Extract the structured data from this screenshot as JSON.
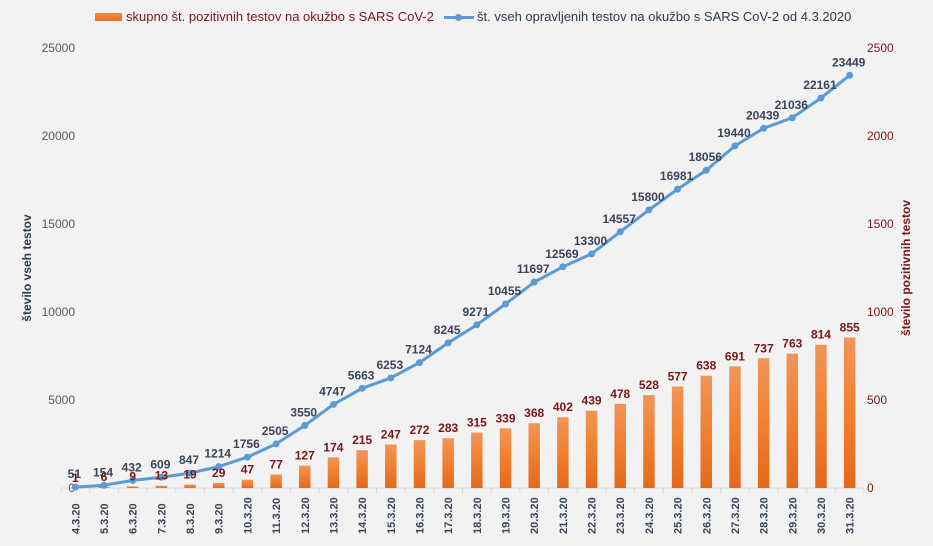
{
  "chart_data": {
    "type": "bar+line",
    "title": "",
    "categories": [
      "4.3.20",
      "5.3.20",
      "6.3.20",
      "7.3.20",
      "8.3.20",
      "9.3.20",
      "10.3.20",
      "11.3.20",
      "12.3.20",
      "13.3.20",
      "14.3.20",
      "15.3.20",
      "16.3.20",
      "17.3.20",
      "18.3.20",
      "19.3.20",
      "20.3.20",
      "21.3.20",
      "22.3.20",
      "23.3.20",
      "24.3.20",
      "25.3.20",
      "26.3.20",
      "27.3.20",
      "28.3.20",
      "29.3.20",
      "30.3.20",
      "31.3.20"
    ],
    "series": [
      {
        "name": "skupno št. pozitivnih testov na okužbo s SARS CoV-2",
        "type": "bar",
        "axis": "right",
        "color": "#ed7d31",
        "label_color": "#7b1616",
        "values": [
          1,
          6,
          9,
          13,
          19,
          29,
          47,
          77,
          127,
          174,
          215,
          247,
          272,
          283,
          315,
          339,
          368,
          402,
          439,
          478,
          528,
          577,
          638,
          691,
          737,
          763,
          814,
          855
        ]
      },
      {
        "name": "št. vseh opravljenih testov na okužbo s SARS CoV-2 od 4.3.2020",
        "type": "line",
        "axis": "left",
        "color": "#5b9bd5",
        "label_color": "#3b4559",
        "values": [
          51,
          154,
          432,
          609,
          847,
          1214,
          1756,
          2505,
          3550,
          4747,
          5663,
          6253,
          7124,
          8245,
          9271,
          10455,
          11697,
          12569,
          13300,
          14557,
          15800,
          16981,
          18056,
          19440,
          20439,
          21036,
          22161,
          23449
        ]
      }
    ],
    "y_left": {
      "label": "število vseh testov",
      "min": 0,
      "max": 25000,
      "ticks": [
        0,
        5000,
        10000,
        15000,
        20000,
        25000
      ]
    },
    "y_right": {
      "label": "število pozitivnih testov",
      "min": 0,
      "max": 2500,
      "ticks": [
        0,
        500,
        1000,
        1500,
        2000,
        2500
      ]
    },
    "xlabel": "",
    "grid": false,
    "legend_position": "top"
  }
}
